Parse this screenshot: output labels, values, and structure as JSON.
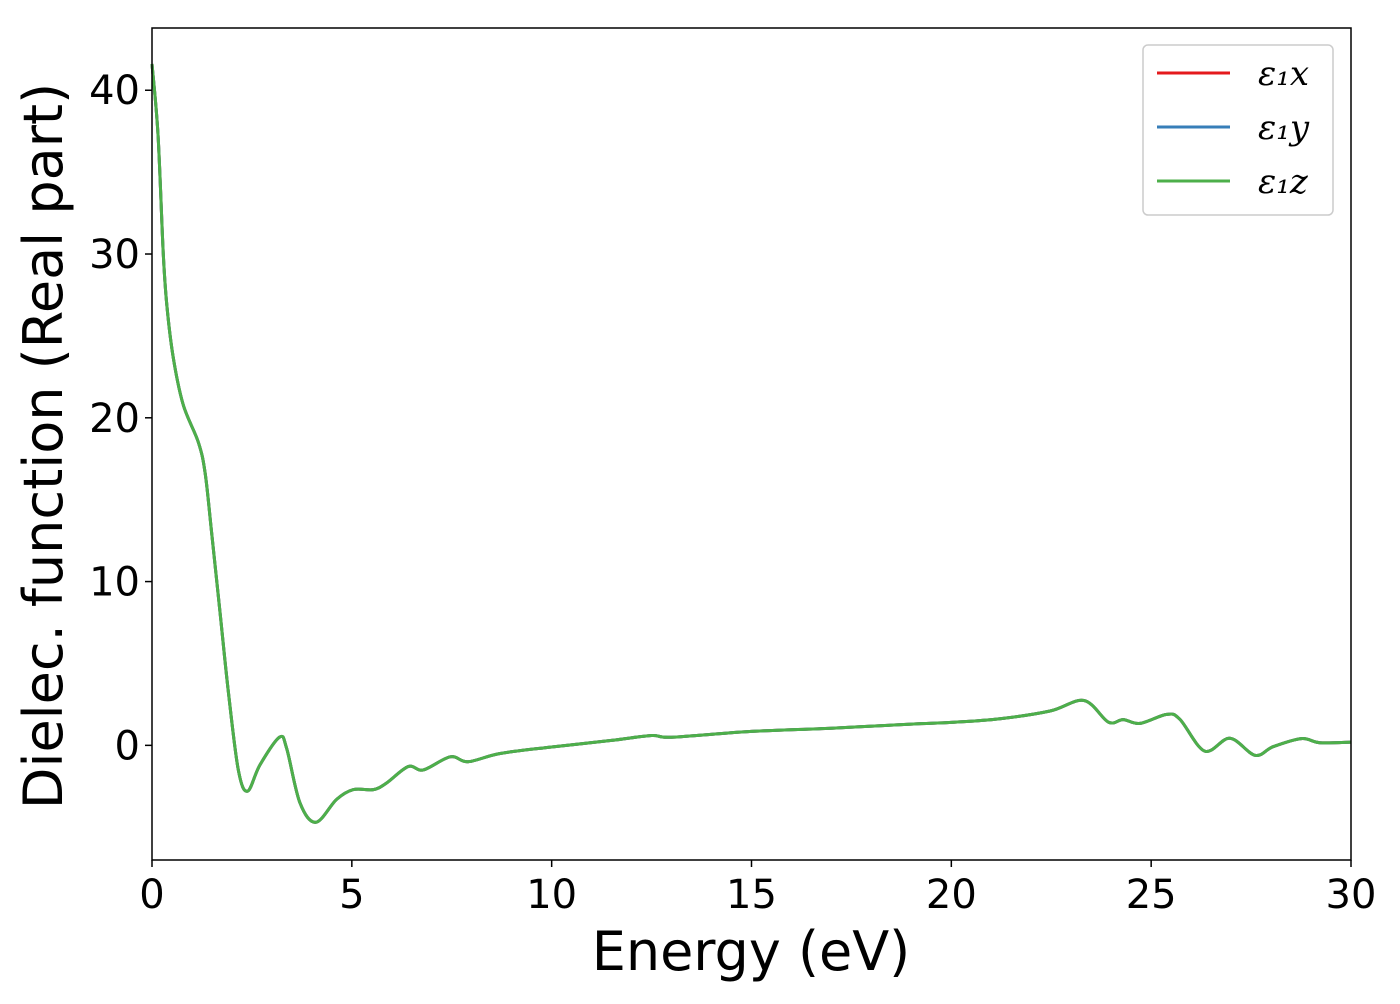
{
  "chart_data": {
    "type": "line",
    "title": "",
    "xlabel": "Energy (eV)",
    "ylabel": "Dielec. function (Real part)",
    "xlim": [
      0,
      30
    ],
    "ylim": [
      -7,
      43.8
    ],
    "xticks": [
      0,
      5,
      10,
      15,
      20,
      25,
      30
    ],
    "yticks": [
      0,
      10,
      20,
      30,
      40
    ],
    "grid": false,
    "legend_position": "top-right",
    "x": [
      0.0,
      0.15,
      0.28,
      0.37,
      0.53,
      0.78,
      1.16,
      1.33,
      1.49,
      1.7,
      1.91,
      2.16,
      2.39,
      2.7,
      3.19,
      3.37,
      3.7,
      4.1,
      4.62,
      5.04,
      5.54,
      5.87,
      6.41,
      6.79,
      7.46,
      7.91,
      8.71,
      10.0,
      11.5,
      12.5,
      13.0,
      15.0,
      17.0,
      19.0,
      20.0,
      21.22,
      22.47,
      23.32,
      23.93,
      24.3,
      24.72,
      25.39,
      25.72,
      26.34,
      26.97,
      27.6,
      28.05,
      28.76,
      29.22,
      30.0
    ],
    "series": [
      {
        "name": "ε₁x",
        "color": "#e41a1c",
        "values": [
          41.6,
          37.3,
          30.1,
          26.9,
          23.7,
          20.8,
          18.5,
          16.6,
          13.0,
          8.2,
          3.3,
          -1.5,
          -2.8,
          -1.2,
          0.5,
          -0.2,
          -3.5,
          -4.7,
          -3.3,
          -2.7,
          -2.7,
          -2.3,
          -1.3,
          -1.5,
          -0.7,
          -1.0,
          -0.5,
          -0.1,
          0.3,
          0.6,
          0.5,
          0.85,
          1.05,
          1.3,
          1.4,
          1.63,
          2.1,
          2.74,
          1.42,
          1.57,
          1.34,
          1.89,
          1.59,
          -0.35,
          0.43,
          -0.61,
          -0.08,
          0.41,
          0.16,
          0.2
        ]
      },
      {
        "name": "ε₁y",
        "color": "#377eb8",
        "values": [
          41.6,
          37.3,
          30.1,
          26.9,
          23.7,
          20.8,
          18.5,
          16.6,
          13.0,
          8.2,
          3.3,
          -1.5,
          -2.8,
          -1.2,
          0.5,
          -0.2,
          -3.5,
          -4.7,
          -3.3,
          -2.7,
          -2.7,
          -2.3,
          -1.3,
          -1.5,
          -0.7,
          -1.0,
          -0.5,
          -0.1,
          0.3,
          0.6,
          0.5,
          0.85,
          1.05,
          1.3,
          1.4,
          1.63,
          2.1,
          2.74,
          1.42,
          1.57,
          1.34,
          1.89,
          1.59,
          -0.35,
          0.43,
          -0.61,
          -0.08,
          0.41,
          0.16,
          0.2
        ]
      },
      {
        "name": "ε₁z",
        "color": "#4daf4a",
        "values": [
          41.6,
          37.3,
          30.1,
          26.9,
          23.7,
          20.8,
          18.5,
          16.6,
          13.0,
          8.2,
          3.3,
          -1.5,
          -2.8,
          -1.2,
          0.5,
          -0.2,
          -3.5,
          -4.7,
          -3.3,
          -2.7,
          -2.7,
          -2.3,
          -1.3,
          -1.5,
          -0.7,
          -1.0,
          -0.5,
          -0.1,
          0.3,
          0.6,
          0.5,
          0.85,
          1.05,
          1.3,
          1.4,
          1.63,
          2.1,
          2.74,
          1.42,
          1.57,
          1.34,
          1.89,
          1.59,
          -0.35,
          0.43,
          -0.61,
          -0.08,
          0.41,
          0.16,
          0.2
        ]
      }
    ]
  }
}
